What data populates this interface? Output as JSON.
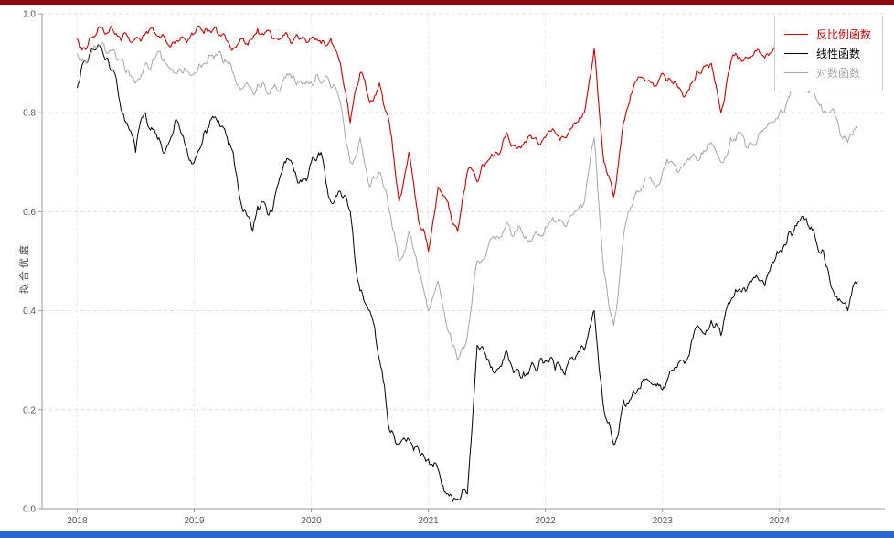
{
  "window": {
    "top_strip_color": "#8b0a0a",
    "bottom_strip_color": "#2a65d0",
    "background": "#ffffff"
  },
  "chart_data": {
    "type": "line",
    "title": "",
    "xlabel": "",
    "ylabel": "拟合优度",
    "xlim": [
      2017.7,
      2024.9
    ],
    "ylim": [
      0.0,
      1.0
    ],
    "xticks": [
      2018,
      2019,
      2020,
      2021,
      2022,
      2023,
      2024
    ],
    "yticks": [
      0.0,
      0.2,
      0.4,
      0.6,
      0.8,
      1.0
    ],
    "grid": "dashed",
    "legend_position": "upper right",
    "render_jitter": [
      0.016,
      0.022,
      0.02
    ],
    "x": [
      2018.0,
      2018.083,
      2018.167,
      2018.25,
      2018.333,
      2018.417,
      2018.5,
      2018.583,
      2018.667,
      2018.75,
      2018.833,
      2018.917,
      2019.0,
      2019.083,
      2019.167,
      2019.25,
      2019.333,
      2019.417,
      2019.5,
      2019.583,
      2019.667,
      2019.75,
      2019.833,
      2019.917,
      2020.0,
      2020.083,
      2020.167,
      2020.25,
      2020.333,
      2020.417,
      2020.5,
      2020.583,
      2020.667,
      2020.75,
      2020.833,
      2020.917,
      2021.0,
      2021.083,
      2021.167,
      2021.25,
      2021.333,
      2021.417,
      2021.5,
      2021.583,
      2021.667,
      2021.75,
      2021.833,
      2021.917,
      2022.0,
      2022.083,
      2022.167,
      2022.25,
      2022.333,
      2022.417,
      2022.5,
      2022.583,
      2022.667,
      2022.75,
      2022.833,
      2022.917,
      2023.0,
      2023.083,
      2023.167,
      2023.25,
      2023.333,
      2023.417,
      2023.5,
      2023.583,
      2023.667,
      2023.75,
      2023.833,
      2023.917,
      2024.0,
      2024.083,
      2024.167,
      2024.25,
      2024.333,
      2024.417,
      2024.5,
      2024.583,
      2024.667
    ],
    "series": [
      {
        "name": "反比例函数",
        "color": "#cc0000",
        "values": [
          0.95,
          0.93,
          0.96,
          0.96,
          0.96,
          0.96,
          0.95,
          0.96,
          0.96,
          0.95,
          0.94,
          0.95,
          0.96,
          0.96,
          0.97,
          0.96,
          0.93,
          0.95,
          0.95,
          0.96,
          0.95,
          0.95,
          0.94,
          0.95,
          0.95,
          0.94,
          0.95,
          0.9,
          0.78,
          0.88,
          0.82,
          0.86,
          0.78,
          0.62,
          0.72,
          0.58,
          0.52,
          0.65,
          0.62,
          0.56,
          0.68,
          0.66,
          0.7,
          0.72,
          0.76,
          0.73,
          0.74,
          0.75,
          0.75,
          0.76,
          0.75,
          0.78,
          0.8,
          0.93,
          0.7,
          0.63,
          0.78,
          0.85,
          0.87,
          0.86,
          0.88,
          0.86,
          0.84,
          0.86,
          0.88,
          0.9,
          0.8,
          0.9,
          0.91,
          0.91,
          0.92,
          0.92,
          0.93,
          0.93,
          0.94,
          0.93,
          0.86,
          0.93,
          0.94,
          0.88,
          0.91
        ]
      },
      {
        "name": "线性函数",
        "color": "#000000",
        "values": [
          0.85,
          0.9,
          0.93,
          0.91,
          0.87,
          0.78,
          0.72,
          0.8,
          0.76,
          0.72,
          0.78,
          0.74,
          0.7,
          0.76,
          0.79,
          0.77,
          0.72,
          0.6,
          0.56,
          0.62,
          0.6,
          0.68,
          0.7,
          0.66,
          0.7,
          0.72,
          0.62,
          0.64,
          0.6,
          0.44,
          0.4,
          0.3,
          0.16,
          0.13,
          0.14,
          0.12,
          0.1,
          0.08,
          0.03,
          0.02,
          0.03,
          0.33,
          0.3,
          0.28,
          0.32,
          0.28,
          0.27,
          0.28,
          0.3,
          0.28,
          0.27,
          0.3,
          0.32,
          0.4,
          0.2,
          0.13,
          0.22,
          0.24,
          0.26,
          0.25,
          0.24,
          0.28,
          0.3,
          0.34,
          0.36,
          0.38,
          0.35,
          0.42,
          0.44,
          0.46,
          0.46,
          0.48,
          0.52,
          0.56,
          0.58,
          0.57,
          0.52,
          0.48,
          0.42,
          0.4,
          0.46
        ]
      },
      {
        "name": "对数函数",
        "color": "#a6a6a6",
        "values": [
          0.92,
          0.9,
          0.93,
          0.92,
          0.91,
          0.88,
          0.86,
          0.9,
          0.91,
          0.9,
          0.88,
          0.89,
          0.88,
          0.9,
          0.91,
          0.9,
          0.88,
          0.85,
          0.84,
          0.86,
          0.85,
          0.86,
          0.87,
          0.86,
          0.86,
          0.86,
          0.85,
          0.82,
          0.7,
          0.75,
          0.65,
          0.68,
          0.6,
          0.5,
          0.56,
          0.48,
          0.4,
          0.46,
          0.36,
          0.3,
          0.35,
          0.5,
          0.52,
          0.55,
          0.58,
          0.56,
          0.55,
          0.56,
          0.57,
          0.58,
          0.57,
          0.6,
          0.62,
          0.75,
          0.48,
          0.37,
          0.55,
          0.62,
          0.65,
          0.66,
          0.68,
          0.7,
          0.69,
          0.71,
          0.72,
          0.74,
          0.7,
          0.75,
          0.76,
          0.74,
          0.76,
          0.78,
          0.8,
          0.83,
          0.85,
          0.84,
          0.82,
          0.8,
          0.78,
          0.74,
          0.77
        ]
      }
    ]
  }
}
